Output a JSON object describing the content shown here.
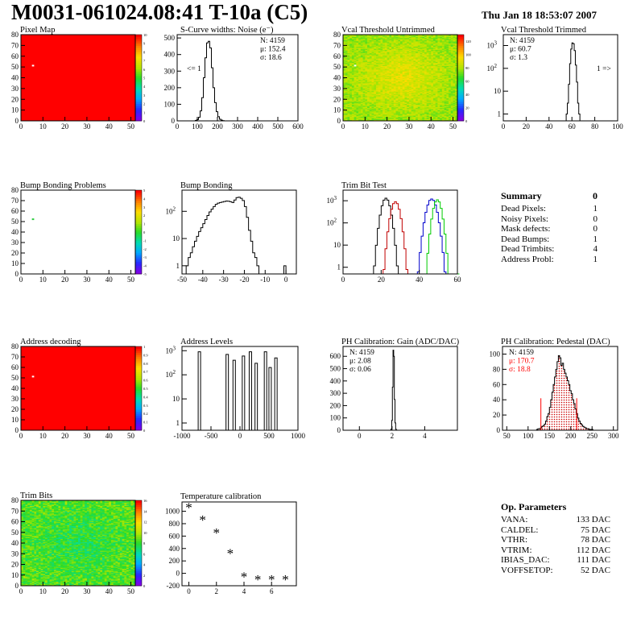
{
  "header": {
    "title": "M0031-061024.08:41 T-10a (C5)",
    "date": "Thu Jan 18 18:53:07 2007"
  },
  "summary": {
    "title": "Summary",
    "total": "0",
    "items": [
      {
        "label": "Dead Pixels:",
        "value": "1"
      },
      {
        "label": "Noisy Pixels:",
        "value": "0"
      },
      {
        "label": "Mask defects:",
        "value": "0"
      },
      {
        "label": "Dead Bumps:",
        "value": "1"
      },
      {
        "label": "Dead Trimbits:",
        "value": "4"
      },
      {
        "label": "Address Probl:",
        "value": "1"
      }
    ]
  },
  "op_params": {
    "title": "Op. Parameters",
    "items": [
      {
        "label": "VANA:",
        "value": "133 DAC"
      },
      {
        "label": "CALDEL:",
        "value": "75 DAC"
      },
      {
        "label": "VTHR:",
        "value": "78 DAC"
      },
      {
        "label": "VTRIM:",
        "value": "112 DAC"
      },
      {
        "label": "IBIAS_DAC:",
        "value": "111 DAC"
      },
      {
        "label": "VOFFSETOP:",
        "value": "52 DAC"
      }
    ]
  },
  "colors": {
    "red": "#ff0000",
    "dark_red": "#c00000",
    "green": "#00cc00",
    "blue": "#0000cc",
    "black": "#000000"
  },
  "chart_data": [
    {
      "id": "pixel-map",
      "type": "heatmap",
      "title": "Pixel Map",
      "xlim": [
        0,
        52
      ],
      "ylim": [
        0,
        80
      ],
      "xticks": [
        "0",
        "10",
        "20",
        "30",
        "40",
        "50"
      ],
      "yticks": [
        "0",
        "10",
        "20",
        "30",
        "40",
        "50",
        "60",
        "70",
        "80"
      ],
      "zticks": [
        "0",
        "1",
        "2",
        "3",
        "4",
        "5",
        "6",
        "7",
        "8",
        "9",
        "10"
      ],
      "zlim": [
        0,
        10
      ],
      "fill_value": 10,
      "special": [
        {
          "x": 5,
          "y": 51,
          "value": 0
        }
      ]
    },
    {
      "id": "scurve-widths",
      "type": "bar",
      "title": "S-Curve widths: Noise (e⁻)",
      "xlim": [
        0,
        600
      ],
      "ylim": [
        0,
        520
      ],
      "xticks": [
        "0",
        "100",
        "200",
        "300",
        "400",
        "500",
        "600"
      ],
      "yticks": [
        "0",
        "100",
        "200",
        "300",
        "400",
        "500"
      ],
      "stats": [
        "N: 4159",
        "μ: 152.4",
        "σ: 18.6"
      ],
      "annotation": "<= 1",
      "bin_start": 90,
      "bin_width": 8,
      "values": [
        3,
        8,
        22,
        60,
        140,
        260,
        380,
        470,
        480,
        440,
        320,
        200,
        110,
        55,
        25,
        10,
        4,
        1
      ]
    },
    {
      "id": "vcal-untrimmed",
      "type": "heatmap",
      "title": "Vcal Threshold Untrimmed",
      "xlim": [
        0,
        52
      ],
      "ylim": [
        0,
        80
      ],
      "xticks": [
        "0",
        "10",
        "20",
        "30",
        "40",
        "50"
      ],
      "yticks": [
        "0",
        "10",
        "20",
        "30",
        "40",
        "50",
        "60",
        "70",
        "80"
      ],
      "zticks": [
        "0",
        "20",
        "40",
        "60",
        "80",
        "100",
        "120"
      ],
      "zlim": [
        0,
        130
      ],
      "center_value": 92,
      "edge_value": 78,
      "noise": 8,
      "special": [
        {
          "x": 5,
          "y": 51,
          "value": 130
        }
      ]
    },
    {
      "id": "vcal-trimmed",
      "type": "bar",
      "title": "Vcal Threshold Trimmed",
      "log": true,
      "xlim": [
        0,
        100
      ],
      "ylim": [
        0.5,
        3000
      ],
      "xticks": [
        "0",
        "20",
        "40",
        "60",
        "80",
        "100"
      ],
      "yticks": [
        "1",
        "10",
        "10²",
        "10³"
      ],
      "stats": [
        "N: 4159",
        "μ: 60.7",
        "σ: 1.3"
      ],
      "annotation": "1 =>",
      "bin_start": 55,
      "bin_width": 1,
      "values": [
        1,
        3,
        20,
        160,
        700,
        1300,
        1200,
        600,
        140,
        25,
        3,
        1
      ]
    },
    {
      "id": "bump-problems",
      "type": "heatmap",
      "title": "Bump Bonding Problems",
      "xlim": [
        0,
        52
      ],
      "ylim": [
        0,
        80
      ],
      "xticks": [
        "0",
        "10",
        "20",
        "30",
        "40",
        "50"
      ],
      "yticks": [
        "0",
        "10",
        "20",
        "30",
        "40",
        "50",
        "60",
        "70",
        "80"
      ],
      "zticks": [
        "-5",
        "-4",
        "-3",
        "-2",
        "-1",
        "0",
        "1",
        "2",
        "3",
        "4",
        "5"
      ],
      "zlim": [
        -5,
        5
      ],
      "fill_value": null,
      "special": [
        {
          "x": 5,
          "y": 52,
          "value": 0
        }
      ]
    },
    {
      "id": "bump-bonding",
      "type": "bar",
      "title": "Bump Bonding",
      "log": true,
      "xlim": [
        -50,
        5
      ],
      "ylim": [
        0.5,
        600
      ],
      "xticks": [
        "-50",
        "-40",
        "-30",
        "-20",
        "-10",
        "0"
      ],
      "yticks": [
        "1",
        "10",
        "10²"
      ],
      "bin_start": -48,
      "bin_width": 1,
      "values": [
        1,
        2,
        3,
        5,
        8,
        12,
        18,
        25,
        35,
        50,
        70,
        95,
        120,
        150,
        180,
        200,
        210,
        220,
        230,
        240,
        235,
        225,
        210,
        260,
        320,
        330,
        300,
        250,
        150,
        60,
        20,
        8,
        3,
        2,
        1,
        0.5,
        0.5,
        0.5,
        0.5,
        0.5,
        0.5,
        0.5,
        0.5,
        0.5,
        0.5,
        0.5,
        0.5,
        1,
        0.5
      ]
    },
    {
      "id": "trim-bit-test",
      "type": "line",
      "title": "Trim Bit Test",
      "log": true,
      "xlim": [
        0,
        60
      ],
      "ylim": [
        0.5,
        3000
      ],
      "xticks": [
        "0",
        "20",
        "40",
        "60"
      ],
      "yticks": [
        "1",
        "10",
        "10²",
        "10³"
      ],
      "series": [
        {
          "color": "black",
          "peak": 22,
          "height": 1300,
          "width": 1.6
        },
        {
          "color": "dark_red",
          "peak": 27,
          "height": 900,
          "width": 1.6
        },
        {
          "color": "blue",
          "peak": 46,
          "height": 1200,
          "width": 1.8
        },
        {
          "color": "green",
          "peak": 49,
          "height": 1100,
          "width": 1.5
        }
      ]
    },
    {
      "id": "address-decoding",
      "type": "heatmap",
      "title": "Address decoding",
      "xlim": [
        0,
        52
      ],
      "ylim": [
        0,
        80
      ],
      "xticks": [
        "0",
        "10",
        "20",
        "30",
        "40",
        "50"
      ],
      "yticks": [
        "0",
        "10",
        "20",
        "30",
        "40",
        "50",
        "60",
        "70",
        "80"
      ],
      "zticks": [
        "0",
        "0.1",
        "0.2",
        "0.3",
        "0.4",
        "0.5",
        "0.6",
        "0.7",
        "0.8",
        "0.9",
        "1"
      ],
      "zlim": [
        0,
        1
      ],
      "fill_value": 1,
      "special": [
        {
          "x": 5,
          "y": 51,
          "value": 0
        }
      ]
    },
    {
      "id": "address-levels",
      "type": "bar",
      "title": "Address Levels",
      "log": true,
      "xlim": [
        -1000,
        1000
      ],
      "ylim": [
        0.5,
        1500
      ],
      "xticks": [
        "-1000",
        "-500",
        "0",
        "500",
        "1000"
      ],
      "yticks": [
        "1",
        "10",
        "10²",
        "10³"
      ],
      "spikes": [
        {
          "x": -700,
          "value": 900
        },
        {
          "x": -220,
          "value": 700
        },
        {
          "x": -100,
          "value": 400
        },
        {
          "x": 60,
          "value": 600
        },
        {
          "x": 180,
          "value": 900
        },
        {
          "x": 280,
          "value": 300
        },
        {
          "x": 440,
          "value": 900
        },
        {
          "x": 520,
          "value": 200
        },
        {
          "x": 620,
          "value": 500
        }
      ]
    },
    {
      "id": "ph-gain",
      "type": "bar",
      "title": "PH Calibration: Gain (ADC/DAC)",
      "xlim": [
        -1,
        6
      ],
      "ylim": [
        0,
        680
      ],
      "xticks": [
        "0",
        "2",
        "4"
      ],
      "yticks": [
        "0",
        "100",
        "200",
        "300",
        "400",
        "500",
        "600"
      ],
      "stats": [
        "N: 4159",
        "μ: 2.08",
        "σ: 0.06"
      ],
      "bin_start": 1.9,
      "bin_width": 0.04,
      "values": [
        1,
        10,
        80,
        350,
        650,
        600,
        250,
        60,
        8,
        1
      ]
    },
    {
      "id": "ph-pedestal",
      "type": "bar",
      "title": "PH Calibration: Pedestal (DAC)",
      "xlim": [
        40,
        310
      ],
      "ylim": [
        0,
        110
      ],
      "xticks": [
        "50",
        "100",
        "150",
        "200",
        "250",
        "300"
      ],
      "yticks": [
        "0",
        "20",
        "40",
        "60",
        "80",
        "100"
      ],
      "stats": [
        "N: 4159",
        "μ: 170.7",
        "σ: 18.8"
      ],
      "stats_colors": [
        "black",
        "red",
        "red"
      ],
      "bin_start": 120,
      "bin_width": 3,
      "values": [
        1,
        2,
        2,
        3,
        5,
        6,
        8,
        12,
        18,
        22,
        30,
        40,
        50,
        60,
        70,
        80,
        90,
        98,
        95,
        85,
        88,
        80,
        75,
        70,
        65,
        60,
        52,
        48,
        40,
        35,
        28,
        22,
        16,
        12,
        9,
        7,
        5,
        4,
        3,
        2,
        2,
        1,
        1,
        1
      ],
      "cut_lines": [
        130,
        214
      ]
    },
    {
      "id": "trim-bits",
      "type": "heatmap",
      "title": "Trim Bits",
      "xlim": [
        0,
        52
      ],
      "ylim": [
        0,
        80
      ],
      "xticks": [
        "0",
        "10",
        "20",
        "30",
        "40",
        "50"
      ],
      "yticks": [
        "0",
        "10",
        "20",
        "30",
        "40",
        "50",
        "60",
        "70",
        "80"
      ],
      "zticks": [
        "0",
        "2",
        "4",
        "6",
        "8",
        "10",
        "12",
        "14",
        "16"
      ],
      "zlim": [
        0,
        16
      ],
      "center_value": 7.5,
      "edge_value": 8.5,
      "noise": 1.4,
      "special": []
    },
    {
      "id": "temperature-calibration",
      "type": "scatter",
      "title": "Temperature calibration",
      "xlim": [
        -0.5,
        7.8
      ],
      "ylim": [
        -200,
        1150
      ],
      "xticks": [
        "0",
        "2",
        "4",
        "6"
      ],
      "yticks": [
        "-200",
        "0",
        "200",
        "400",
        "600",
        "800",
        "1000"
      ],
      "x": [
        0,
        1,
        2,
        3,
        4,
        5,
        6,
        7
      ],
      "y": [
        1080,
        880,
        670,
        340,
        -40,
        -80,
        -80,
        -80
      ]
    }
  ]
}
